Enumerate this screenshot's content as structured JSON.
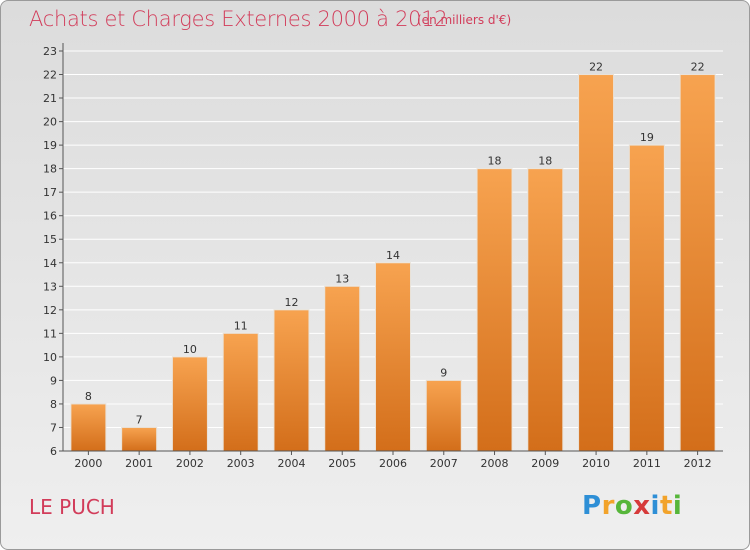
{
  "title": "Achats et Charges Externes 2000 à 2012",
  "subtitle": "(en milliers d'€)",
  "commune": "LE PUCH",
  "logo": {
    "letters": [
      "P",
      "r",
      "o",
      "x",
      "i",
      "t",
      "i"
    ],
    "colors": [
      "#2e8fd6",
      "#f2a32a",
      "#56b63a",
      "#d63a3a",
      "#2e8fd6",
      "#f2a32a",
      "#56b63a"
    ]
  },
  "colors": {
    "bar_top": "#f7a350",
    "bar_bottom": "#d36e1a",
    "accent_text": "#d23c5a",
    "grid": "#ffffff"
  },
  "chart_data": {
    "type": "bar",
    "categories": [
      "2000",
      "2001",
      "2002",
      "2003",
      "2004",
      "2005",
      "2006",
      "2007",
      "2008",
      "2009",
      "2010",
      "2011",
      "2012"
    ],
    "values": [
      8,
      7,
      10,
      11,
      12,
      13,
      14,
      9,
      18,
      18,
      22,
      19,
      22
    ],
    "title": "Achats et Charges Externes 2000 à 2012",
    "xlabel": "",
    "ylabel": "",
    "ylim": [
      6,
      23
    ],
    "yticks": [
      6,
      7,
      8,
      9,
      10,
      11,
      12,
      13,
      14,
      15,
      16,
      17,
      18,
      19,
      20,
      21,
      22,
      23
    ],
    "grid": true,
    "data_labels": true
  }
}
